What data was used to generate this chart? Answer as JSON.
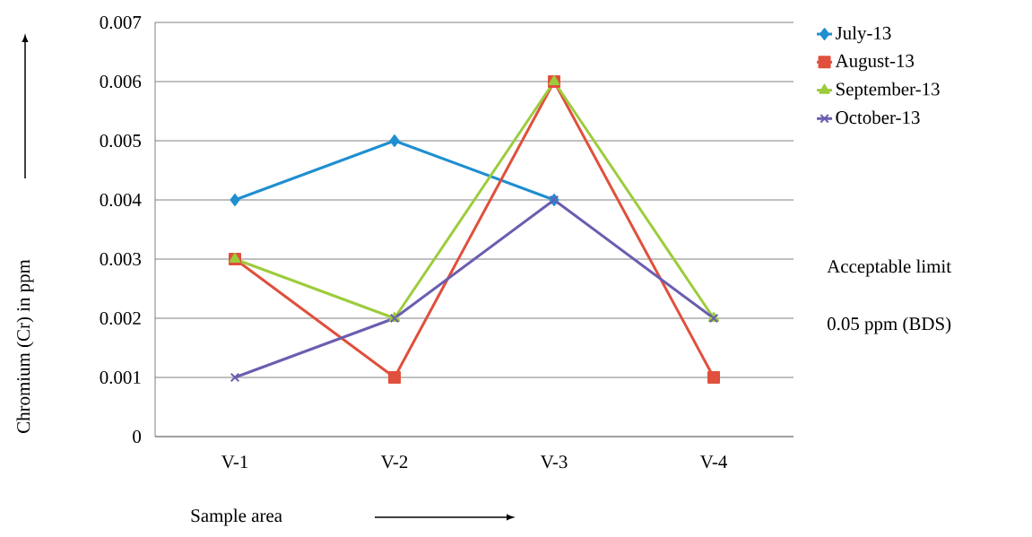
{
  "chart_data": {
    "type": "line",
    "xlabel": "Sample area",
    "ylabel": "Chromium (Cr) in ppm",
    "categories": [
      "V-1",
      "V-2",
      "V-3",
      "V-4"
    ],
    "series": [
      {
        "name": "July-13",
        "color": "#1f8fd0",
        "marker": "diamond",
        "values": [
          0.004,
          0.005,
          0.004,
          null
        ]
      },
      {
        "name": "August-13",
        "color": "#e0503c",
        "marker": "square",
        "values": [
          0.003,
          0.001,
          0.006,
          0.001
        ]
      },
      {
        "name": "September-13",
        "color": "#9ccc3c",
        "marker": "triangle",
        "values": [
          0.003,
          0.002,
          0.006,
          0.002
        ]
      },
      {
        "name": "October-13",
        "color": "#6a5eb0",
        "marker": "cross",
        "values": [
          0.001,
          0.002,
          0.004,
          0.002
        ]
      }
    ],
    "ylim": [
      0,
      0.007
    ],
    "yticks": [
      0,
      0.001,
      0.002,
      0.003,
      0.004,
      0.005,
      0.006,
      0.007
    ],
    "grid": "y",
    "legend": "right",
    "line_style": "solid",
    "annotations": [
      "Acceptable limit",
      "0.05 ppm (BDS)"
    ]
  }
}
